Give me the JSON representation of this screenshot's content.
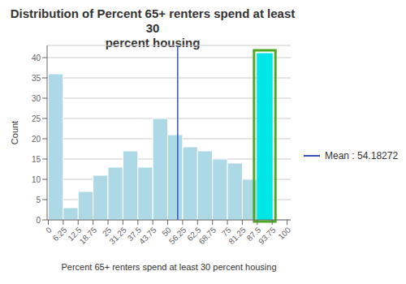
{
  "chart_data": {
    "type": "histogram",
    "title": "Distribution of Percent 65+ renters spend at least 30\npercent housing",
    "xlabel": "Percent 65+ renters spend at least 30 percent housing",
    "ylabel": "Count",
    "bins": [
      0,
      6.25,
      12.5,
      18.75,
      25,
      31.25,
      37.5,
      43.75,
      50,
      56.25,
      62.5,
      68.75,
      75,
      81.25,
      87.5,
      93.75
    ],
    "values": [
      36,
      3,
      7,
      11,
      13,
      17,
      13,
      25,
      21,
      18,
      17,
      15,
      14,
      10,
      41
    ],
    "colors": [
      "#add8e6",
      "#add8e6",
      "#add8e6",
      "#add8e6",
      "#add8e6",
      "#add8e6",
      "#add8e6",
      "#add8e6",
      "#add8e6",
      "#add8e6",
      "#add8e6",
      "#add8e6",
      "#add8e6",
      "#add8e6",
      "#00e5e5"
    ],
    "xlim": [
      -0.5,
      101.5
    ],
    "xticks": [
      0,
      6.25,
      12.5,
      18.75,
      25,
      31.25,
      37.5,
      43.75,
      50,
      56.25,
      62.5,
      68.75,
      75,
      81.25,
      87.5,
      93.75,
      100
    ],
    "ylim": [
      0,
      43
    ],
    "yticks": [
      0,
      5,
      10,
      15,
      20,
      25,
      30,
      35,
      40
    ],
    "grid": true,
    "legend": "right",
    "mean": {
      "value": 54.18272,
      "label": "Mean : 54.18272",
      "color": "#3355bb"
    },
    "selection": {
      "index": 14,
      "color": "#4aaa22"
    }
  }
}
